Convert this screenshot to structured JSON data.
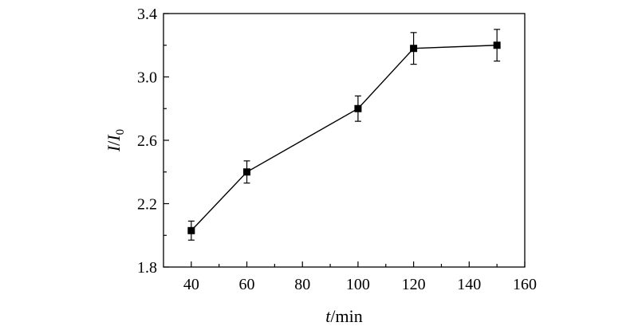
{
  "chart_data": {
    "type": "line",
    "title": "",
    "xlabel": {
      "var": "t",
      "unit": "/min"
    },
    "ylabel": {
      "var": "I",
      "sep": "/",
      "var2": "I",
      "sub": "0"
    },
    "xlim": [
      30,
      160
    ],
    "ylim": [
      1.8,
      3.4
    ],
    "x_ticks": [
      40,
      60,
      80,
      100,
      120,
      140,
      160
    ],
    "y_ticks": [
      1.8,
      2.2,
      2.6,
      3.0,
      3.4
    ],
    "y_tick_labels": [
      "1.8",
      "2.2",
      "2.6",
      "3.0",
      "3.4"
    ],
    "grid": false,
    "series": [
      {
        "marker": "square",
        "x": [
          40,
          60,
          100,
          120,
          150
        ],
        "y": [
          2.03,
          2.4,
          2.8,
          3.18,
          3.2
        ],
        "error": [
          0.06,
          0.07,
          0.08,
          0.1,
          0.1
        ]
      }
    ]
  }
}
